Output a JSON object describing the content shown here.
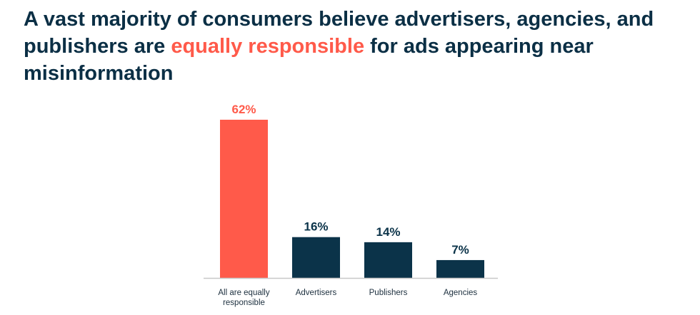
{
  "title": {
    "part1": "A vast majority of consumers believe advertisers, agencies, and publishers are ",
    "highlight": "equally responsible",
    "part2": " for ads appearing near misinformation"
  },
  "colors": {
    "highlight": "#ff5a4a",
    "primary": "#0b3349",
    "axis": "#c8c8c8"
  },
  "chart_data": {
    "type": "bar",
    "categories": [
      "All are equally responsible",
      "Advertisers",
      "Publishers",
      "Agencies"
    ],
    "category_lines": [
      [
        "All are equally",
        "responsible"
      ],
      [
        "Advertisers"
      ],
      [
        "Publishers"
      ],
      [
        "Agencies"
      ]
    ],
    "values": [
      62,
      16,
      14,
      7
    ],
    "labels": [
      "62%",
      "16%",
      "14%",
      "7%"
    ],
    "bar_colors": [
      "#ff5a4a",
      "#0b3349",
      "#0b3349",
      "#0b3349"
    ],
    "unit": "%",
    "ylim": [
      0,
      62
    ],
    "grid": false,
    "legend": "none"
  }
}
